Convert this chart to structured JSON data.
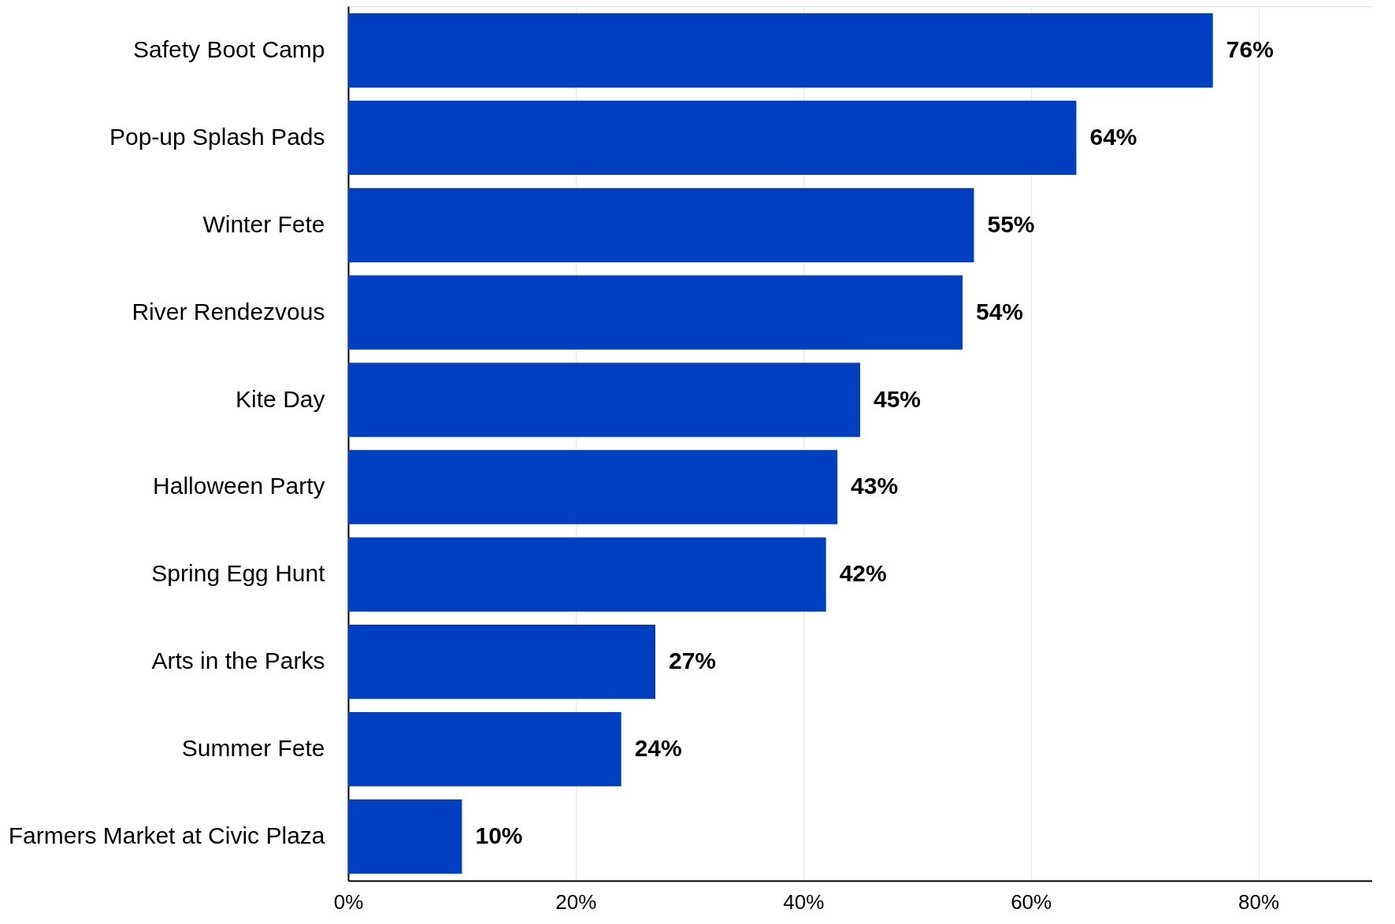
{
  "chart_data": {
    "type": "bar",
    "orientation": "horizontal",
    "categories": [
      "Safety Boot Camp",
      "Pop-up Splash Pads",
      "Winter Fete",
      "River Rendezvous",
      "Kite Day",
      "Halloween Party",
      "Spring Egg Hunt",
      "Arts in the Parks",
      "Summer Fete",
      "Farmers Market at Civic Plaza"
    ],
    "values": [
      76,
      64,
      55,
      54,
      45,
      43,
      42,
      27,
      24,
      10
    ],
    "value_labels": [
      "76%",
      "64%",
      "55%",
      "54%",
      "45%",
      "43%",
      "42%",
      "27%",
      "24%",
      "10%"
    ],
    "color": "#0040c0",
    "xlim": [
      0,
      90
    ],
    "xticks": [
      {
        "value": 0,
        "label": "0%"
      },
      {
        "value": 20,
        "label": "20%"
      },
      {
        "value": 40,
        "label": "40%"
      },
      {
        "value": 60,
        "label": "60%"
      },
      {
        "value": 80,
        "label": "80%"
      }
    ],
    "grid": "x"
  }
}
